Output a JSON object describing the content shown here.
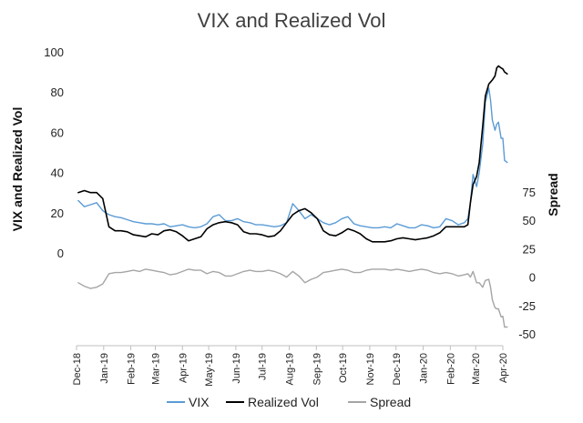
{
  "chart_data": {
    "type": "line",
    "title": "VIX and Realized Vol",
    "ylabel": "VIX and Realized Vol",
    "y2label": "Spread",
    "ylim": [
      0,
      100
    ],
    "y2lim": [
      -50,
      75
    ],
    "yticks": [
      "0",
      "20",
      "40",
      "60",
      "80",
      "100"
    ],
    "y2ticks": [
      "-50",
      "-25",
      "0",
      "25",
      "50",
      "75"
    ],
    "x_range": [
      "2018-12-01",
      "2020-04-01"
    ],
    "x_ticks": [
      "Dec-18",
      "Jan-19",
      "Feb-19",
      "Mar-19",
      "Apr-19",
      "May-19",
      "Jun-19",
      "Jul-19",
      "Aug-19",
      "Sep-19",
      "Oct-19",
      "Nov-19",
      "Dec-19",
      "Jan-20",
      "Feb-20",
      "Mar-20",
      "Apr-20"
    ],
    "legend_position": "bottom",
    "grid": false,
    "series": [
      {
        "name": "VIX",
        "axis": "left",
        "color": "#5b9bd5",
        "points": [
          [
            "2018-12-03",
            26
          ],
          [
            "2018-12-10",
            23
          ],
          [
            "2018-12-17",
            24
          ],
          [
            "2018-12-24",
            25
          ],
          [
            "2018-12-31",
            21
          ],
          [
            "2019-01-07",
            19
          ],
          [
            "2019-01-14",
            18
          ],
          [
            "2019-01-21",
            17.5
          ],
          [
            "2019-01-28",
            16.5
          ],
          [
            "2019-02-04",
            15.5
          ],
          [
            "2019-02-11",
            15
          ],
          [
            "2019-02-18",
            14.5
          ],
          [
            "2019-02-25",
            14.5
          ],
          [
            "2019-03-04",
            14
          ],
          [
            "2019-03-11",
            14.5
          ],
          [
            "2019-03-18",
            13
          ],
          [
            "2019-03-25",
            13.5
          ],
          [
            "2019-04-01",
            14
          ],
          [
            "2019-04-08",
            13
          ],
          [
            "2019-04-15",
            12.5
          ],
          [
            "2019-04-22",
            13
          ],
          [
            "2019-04-29",
            14.5
          ],
          [
            "2019-05-06",
            18
          ],
          [
            "2019-05-13",
            19
          ],
          [
            "2019-05-20",
            16
          ],
          [
            "2019-05-27",
            16
          ],
          [
            "2019-06-03",
            17
          ],
          [
            "2019-06-10",
            15.5
          ],
          [
            "2019-06-17",
            15
          ],
          [
            "2019-06-24",
            14
          ],
          [
            "2019-07-01",
            14
          ],
          [
            "2019-07-08",
            13.5
          ],
          [
            "2019-07-15",
            13
          ],
          [
            "2019-07-22",
            13.5
          ],
          [
            "2019-07-29",
            15
          ],
          [
            "2019-08-05",
            24.5
          ],
          [
            "2019-08-12",
            21
          ],
          [
            "2019-08-19",
            17
          ],
          [
            "2019-08-26",
            19
          ],
          [
            "2019-09-02",
            17
          ],
          [
            "2019-09-09",
            15
          ],
          [
            "2019-09-16",
            14
          ],
          [
            "2019-09-23",
            15
          ],
          [
            "2019-09-30",
            17
          ],
          [
            "2019-10-07",
            18
          ],
          [
            "2019-10-14",
            14.5
          ],
          [
            "2019-10-21",
            13.5
          ],
          [
            "2019-10-28",
            13
          ],
          [
            "2019-11-04",
            12.5
          ],
          [
            "2019-11-11",
            12.5
          ],
          [
            "2019-11-18",
            13
          ],
          [
            "2019-11-25",
            12.5
          ],
          [
            "2019-12-02",
            14.5
          ],
          [
            "2019-12-09",
            13.5
          ],
          [
            "2019-12-16",
            12.5
          ],
          [
            "2019-12-23",
            12.5
          ],
          [
            "2019-12-30",
            14
          ],
          [
            "2020-01-06",
            13.5
          ],
          [
            "2020-01-13",
            12.5
          ],
          [
            "2020-01-20",
            13
          ],
          [
            "2020-01-27",
            17
          ],
          [
            "2020-02-03",
            16
          ],
          [
            "2020-02-10",
            14
          ],
          [
            "2020-02-17",
            15
          ],
          [
            "2020-02-21",
            17
          ],
          [
            "2020-02-24",
            25
          ],
          [
            "2020-02-27",
            39
          ],
          [
            "2020-03-02",
            33
          ],
          [
            "2020-03-05",
            40
          ],
          [
            "2020-03-09",
            54
          ],
          [
            "2020-03-12",
            75
          ],
          [
            "2020-03-16",
            82
          ],
          [
            "2020-03-18",
            76
          ],
          [
            "2020-03-20",
            66
          ],
          [
            "2020-03-23",
            61
          ],
          [
            "2020-03-25",
            64
          ],
          [
            "2020-03-27",
            65
          ],
          [
            "2020-03-30",
            57
          ],
          [
            "2020-04-01",
            57
          ],
          [
            "2020-04-03",
            46
          ],
          [
            "2020-04-06",
            45
          ]
        ]
      },
      {
        "name": "Realized Vol",
        "axis": "left",
        "color": "#000000",
        "points": [
          [
            "2018-12-03",
            30
          ],
          [
            "2018-12-10",
            31
          ],
          [
            "2018-12-17",
            30
          ],
          [
            "2018-12-24",
            30
          ],
          [
            "2018-12-31",
            27
          ],
          [
            "2019-01-07",
            13
          ],
          [
            "2019-01-14",
            11
          ],
          [
            "2019-01-21",
            11
          ],
          [
            "2019-01-28",
            10.5
          ],
          [
            "2019-02-04",
            9
          ],
          [
            "2019-02-11",
            8.5
          ],
          [
            "2019-02-18",
            8
          ],
          [
            "2019-02-25",
            9.5
          ],
          [
            "2019-03-04",
            9
          ],
          [
            "2019-03-11",
            11
          ],
          [
            "2019-03-18",
            11.5
          ],
          [
            "2019-03-25",
            10.5
          ],
          [
            "2019-04-01",
            8.5
          ],
          [
            "2019-04-08",
            6
          ],
          [
            "2019-04-15",
            7
          ],
          [
            "2019-04-22",
            8
          ],
          [
            "2019-04-29",
            12
          ],
          [
            "2019-05-06",
            14
          ],
          [
            "2019-05-13",
            15
          ],
          [
            "2019-05-20",
            15.5
          ],
          [
            "2019-05-27",
            15
          ],
          [
            "2019-06-03",
            14
          ],
          [
            "2019-06-10",
            10.5
          ],
          [
            "2019-06-17",
            9.5
          ],
          [
            "2019-06-24",
            9.5
          ],
          [
            "2019-07-01",
            9
          ],
          [
            "2019-07-08",
            8
          ],
          [
            "2019-07-15",
            8.5
          ],
          [
            "2019-07-22",
            11
          ],
          [
            "2019-07-29",
            15
          ],
          [
            "2019-08-05",
            19
          ],
          [
            "2019-08-12",
            21
          ],
          [
            "2019-08-19",
            22
          ],
          [
            "2019-08-26",
            20
          ],
          [
            "2019-09-02",
            17
          ],
          [
            "2019-09-09",
            11
          ],
          [
            "2019-09-16",
            9
          ],
          [
            "2019-09-23",
            8.5
          ],
          [
            "2019-09-30",
            10
          ],
          [
            "2019-10-07",
            12
          ],
          [
            "2019-10-14",
            11
          ],
          [
            "2019-10-21",
            9.5
          ],
          [
            "2019-10-28",
            7
          ],
          [
            "2019-11-04",
            5.5
          ],
          [
            "2019-11-11",
            5.5
          ],
          [
            "2019-11-18",
            5.5
          ],
          [
            "2019-11-25",
            6
          ],
          [
            "2019-12-02",
            7
          ],
          [
            "2019-12-09",
            7.5
          ],
          [
            "2019-12-16",
            7
          ],
          [
            "2019-12-23",
            6.5
          ],
          [
            "2019-12-30",
            7
          ],
          [
            "2020-01-06",
            7.5
          ],
          [
            "2020-01-13",
            8.5
          ],
          [
            "2020-01-20",
            10
          ],
          [
            "2020-01-27",
            13
          ],
          [
            "2020-02-03",
            13
          ],
          [
            "2020-02-10",
            13
          ],
          [
            "2020-02-17",
            13
          ],
          [
            "2020-02-21",
            14
          ],
          [
            "2020-02-24",
            25
          ],
          [
            "2020-02-27",
            34
          ],
          [
            "2020-03-02",
            38
          ],
          [
            "2020-03-05",
            45
          ],
          [
            "2020-03-09",
            63
          ],
          [
            "2020-03-12",
            78
          ],
          [
            "2020-03-16",
            84
          ],
          [
            "2020-03-18",
            85
          ],
          [
            "2020-03-20",
            86
          ],
          [
            "2020-03-23",
            88
          ],
          [
            "2020-03-25",
            92
          ],
          [
            "2020-03-27",
            93
          ],
          [
            "2020-03-30",
            92
          ],
          [
            "2020-04-01",
            91.5
          ],
          [
            "2020-04-03",
            90
          ],
          [
            "2020-04-06",
            89
          ]
        ]
      },
      {
        "name": "Spread",
        "axis": "right",
        "color": "#a5a5a5",
        "points": [
          [
            "2018-12-03",
            -5
          ],
          [
            "2018-12-10",
            -8
          ],
          [
            "2018-12-17",
            -10
          ],
          [
            "2018-12-24",
            -9
          ],
          [
            "2018-12-31",
            -6
          ],
          [
            "2019-01-07",
            3
          ],
          [
            "2019-01-14",
            4
          ],
          [
            "2019-01-21",
            4
          ],
          [
            "2019-01-28",
            5
          ],
          [
            "2019-02-04",
            6
          ],
          [
            "2019-02-11",
            5
          ],
          [
            "2019-02-18",
            7
          ],
          [
            "2019-02-25",
            6
          ],
          [
            "2019-03-04",
            5
          ],
          [
            "2019-03-11",
            4
          ],
          [
            "2019-03-18",
            2
          ],
          [
            "2019-03-25",
            3
          ],
          [
            "2019-04-01",
            5
          ],
          [
            "2019-04-08",
            7
          ],
          [
            "2019-04-15",
            6
          ],
          [
            "2019-04-22",
            6
          ],
          [
            "2019-04-29",
            3
          ],
          [
            "2019-05-06",
            5
          ],
          [
            "2019-05-13",
            4
          ],
          [
            "2019-05-20",
            1
          ],
          [
            "2019-05-27",
            1
          ],
          [
            "2019-06-03",
            3
          ],
          [
            "2019-06-10",
            5
          ],
          [
            "2019-06-17",
            6
          ],
          [
            "2019-06-24",
            5
          ],
          [
            "2019-07-01",
            5
          ],
          [
            "2019-07-08",
            6
          ],
          [
            "2019-07-15",
            5
          ],
          [
            "2019-07-22",
            3
          ],
          [
            "2019-07-29",
            0
          ],
          [
            "2019-08-05",
            5
          ],
          [
            "2019-08-12",
            1
          ],
          [
            "2019-08-19",
            -5
          ],
          [
            "2019-08-26",
            -2
          ],
          [
            "2019-09-02",
            0
          ],
          [
            "2019-09-09",
            4
          ],
          [
            "2019-09-16",
            5
          ],
          [
            "2019-09-23",
            6
          ],
          [
            "2019-09-30",
            7
          ],
          [
            "2019-10-07",
            6
          ],
          [
            "2019-10-14",
            4
          ],
          [
            "2019-10-21",
            4
          ],
          [
            "2019-10-28",
            6
          ],
          [
            "2019-11-04",
            7
          ],
          [
            "2019-11-11",
            7
          ],
          [
            "2019-11-18",
            7
          ],
          [
            "2019-11-25",
            6
          ],
          [
            "2019-12-02",
            7
          ],
          [
            "2019-12-09",
            6
          ],
          [
            "2019-12-16",
            5
          ],
          [
            "2019-12-23",
            6
          ],
          [
            "2019-12-30",
            7
          ],
          [
            "2020-01-06",
            6
          ],
          [
            "2020-01-13",
            4
          ],
          [
            "2020-01-20",
            3
          ],
          [
            "2020-01-27",
            4
          ],
          [
            "2020-02-03",
            3
          ],
          [
            "2020-02-10",
            1
          ],
          [
            "2020-02-17",
            2
          ],
          [
            "2020-02-21",
            3
          ],
          [
            "2020-02-24",
            0
          ],
          [
            "2020-02-27",
            5
          ],
          [
            "2020-03-02",
            -5
          ],
          [
            "2020-03-05",
            -5
          ],
          [
            "2020-03-09",
            -9
          ],
          [
            "2020-03-12",
            -3
          ],
          [
            "2020-03-16",
            -2
          ],
          [
            "2020-03-18",
            -9
          ],
          [
            "2020-03-20",
            -20
          ],
          [
            "2020-03-23",
            -27
          ],
          [
            "2020-03-25",
            -28
          ],
          [
            "2020-03-27",
            -28
          ],
          [
            "2020-03-30",
            -35
          ],
          [
            "2020-04-01",
            -34.5
          ],
          [
            "2020-04-03",
            -44
          ],
          [
            "2020-04-06",
            -44
          ]
        ]
      }
    ]
  }
}
